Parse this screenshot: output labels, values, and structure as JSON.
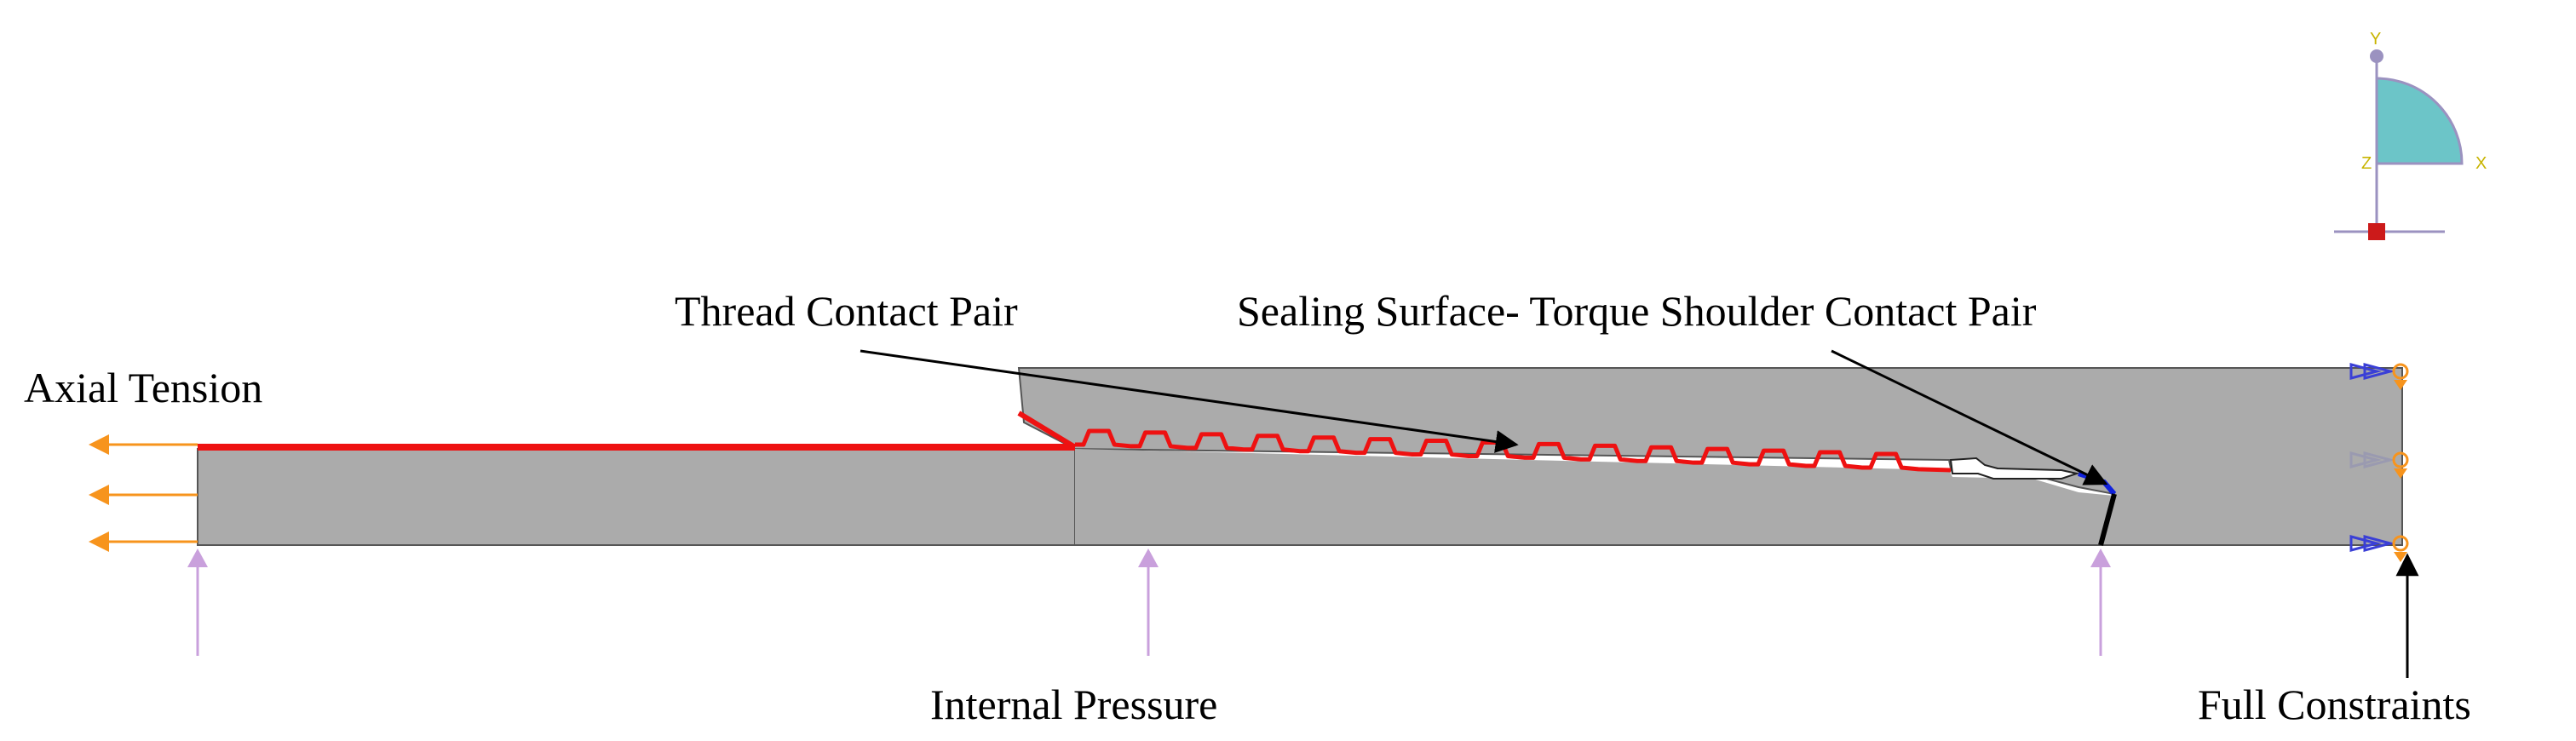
{
  "labels": {
    "thread_contact_pair": "Thread Contact Pair",
    "sealing_surface": "Sealing Surface- Torque Shoulder Contact Pair",
    "axial_tension": "Axial Tension",
    "internal_pressure": "Internal Pressure",
    "full_constraints": "Full Constraints"
  },
  "triad": {
    "y_label": "Y",
    "x_label": "X",
    "z_label": "Z"
  },
  "colors": {
    "part_fill": "#ababab",
    "part_edge": "#555555",
    "thread_contact": "#ee1111",
    "seal_contact": "#1122dd",
    "axial_tension_arrow": "#f7941d",
    "pressure_arrow": "#c9a0dc",
    "constraint_blue": "#3a3fd6",
    "constraint_orange": "#f7941d",
    "triad_fill": "#6cc5c8",
    "triad_axis": "#9b92c0",
    "triad_origin": "#cc1a1a",
    "triad_text": "#c8b400"
  }
}
